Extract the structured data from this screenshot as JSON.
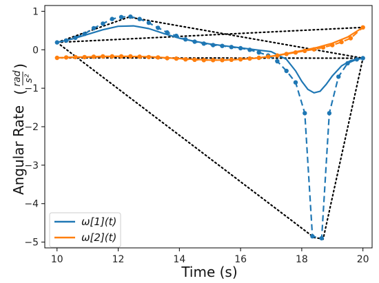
{
  "chart_data": {
    "type": "line",
    "xlabel": "Time (s)",
    "ylabel": "Angular Rate",
    "ylabel_unit": {
      "numerator": "rad",
      "denominator": "s²"
    },
    "xlim": [
      9.6,
      20.3
    ],
    "ylim": [
      -5.15,
      1.15
    ],
    "xticks": [
      10,
      12,
      14,
      16,
      18,
      20
    ],
    "yticks": [
      -5,
      -4,
      -3,
      -2,
      -1,
      0,
      1
    ],
    "tick_labels_x": [
      "10",
      "12",
      "14",
      "16",
      "18",
      "20"
    ],
    "tick_labels_y": [
      "−5",
      "−4",
      "−3",
      "−2",
      "−1",
      "0",
      "1"
    ],
    "legend": {
      "position": "bottom-left",
      "entries": [
        "ω[1](t)",
        "ω[2](t)"
      ]
    },
    "colors": {
      "series1": "#1f77b4",
      "series2": "#ff7f0e",
      "polygon": "#000000"
    },
    "series": [
      {
        "name": "ω[1](t)",
        "color": "#1f77b4",
        "smooth": {
          "x": [
            10.0,
            10.5,
            11.0,
            11.5,
            12.0,
            12.5,
            13.0,
            13.5,
            14.0,
            14.5,
            15.0,
            15.5,
            16.0,
            16.5,
            17.0,
            17.5,
            17.8,
            18.0,
            18.2,
            18.4,
            18.6,
            18.8,
            19.0,
            19.3,
            19.6,
            20.0
          ],
          "y": [
            0.19,
            0.28,
            0.4,
            0.52,
            0.61,
            0.62,
            0.55,
            0.42,
            0.3,
            0.22,
            0.15,
            0.1,
            0.05,
            0.0,
            -0.05,
            -0.25,
            -0.55,
            -0.82,
            -1.03,
            -1.12,
            -1.08,
            -0.9,
            -0.68,
            -0.42,
            -0.28,
            -0.22
          ]
        },
        "dashed": {
          "x": [
            10.0,
            10.3,
            10.6,
            10.9,
            11.2,
            11.5,
            11.8,
            12.1,
            12.4,
            12.7,
            13.0,
            13.3,
            13.6,
            13.9,
            14.2,
            14.5,
            14.8,
            15.1,
            15.4,
            15.7,
            16.0,
            16.3,
            16.6,
            16.9,
            17.2,
            17.5,
            17.8,
            18.1,
            18.35,
            18.65,
            18.9,
            19.2,
            19.5,
            19.8,
            20.0
          ],
          "y": [
            0.19,
            0.24,
            0.31,
            0.41,
            0.56,
            0.68,
            0.8,
            0.85,
            0.86,
            0.8,
            0.7,
            0.57,
            0.45,
            0.36,
            0.27,
            0.21,
            0.16,
            0.12,
            0.1,
            0.07,
            0.04,
            0.0,
            -0.07,
            -0.15,
            -0.3,
            -0.55,
            -0.85,
            -1.65,
            -4.85,
            -4.9,
            -1.65,
            -0.7,
            -0.35,
            -0.25,
            -0.22
          ]
        }
      },
      {
        "name": "ω[2](t)",
        "color": "#ff7f0e",
        "smooth": {
          "x": [
            10.0,
            11.0,
            12.0,
            13.0,
            14.0,
            15.0,
            15.5,
            16.0,
            16.5,
            17.0,
            17.5,
            18.0,
            18.5,
            19.0,
            19.5,
            20.0
          ],
          "y": [
            -0.21,
            -0.19,
            -0.17,
            -0.18,
            -0.23,
            -0.27,
            -0.27,
            -0.25,
            -0.22,
            -0.17,
            -0.1,
            -0.02,
            0.06,
            0.17,
            0.33,
            0.58
          ]
        },
        "dashed": {
          "x": [
            10.0,
            10.3,
            10.6,
            10.9,
            11.2,
            11.5,
            11.8,
            12.1,
            12.4,
            12.7,
            13.0,
            13.3,
            13.6,
            13.9,
            14.2,
            14.5,
            14.8,
            15.1,
            15.4,
            15.7,
            16.0,
            16.3,
            16.6,
            16.9,
            17.2,
            17.5,
            17.8,
            18.1,
            18.4,
            18.7,
            19.0,
            19.3,
            19.6,
            20.0
          ],
          "y": [
            -0.21,
            -0.2,
            -0.19,
            -0.19,
            -0.18,
            -0.17,
            -0.17,
            -0.17,
            -0.17,
            -0.18,
            -0.19,
            -0.2,
            -0.22,
            -0.23,
            -0.25,
            -0.26,
            -0.27,
            -0.27,
            -0.27,
            -0.26,
            -0.25,
            -0.23,
            -0.21,
            -0.18,
            -0.15,
            -0.11,
            -0.07,
            -0.03,
            0.01,
            0.06,
            0.12,
            0.2,
            0.3,
            0.58
          ]
        }
      }
    ],
    "control_polygons": [
      {
        "x": [
          10.0,
          12.35,
          20.0
        ],
        "y": [
          0.19,
          0.85,
          -0.22
        ]
      },
      {
        "x": [
          10.0,
          20.0
        ],
        "y": [
          0.19,
          0.58
        ]
      },
      {
        "x": [
          10.0,
          18.4,
          18.7,
          20.0
        ],
        "y": [
          0.19,
          -4.88,
          -4.92,
          -0.22
        ]
      },
      {
        "x": [
          10.0,
          20.0
        ],
        "y": [
          -0.21,
          -0.22
        ]
      }
    ]
  }
}
